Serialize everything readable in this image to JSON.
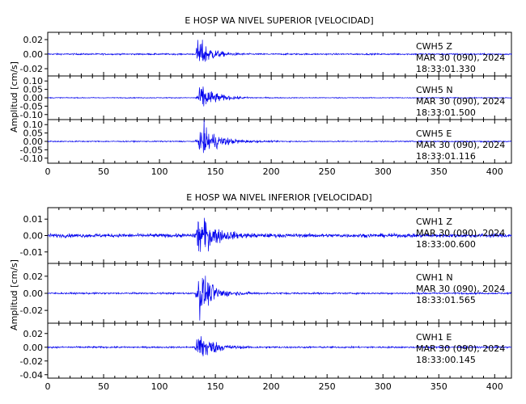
{
  "chart_data": [
    {
      "type": "line",
      "title": "E HOSP WA NIVEL SUPERIOR [VELOCIDAD]",
      "ylabel": "Amplitud [cm/s]",
      "xlabel": "",
      "xlim": [
        0,
        415
      ],
      "xticks": [
        "0",
        "50",
        "100",
        "150",
        "200",
        "250",
        "300",
        "350",
        "400"
      ],
      "line_color": "#0000ee",
      "panels": [
        {
          "station": "CWH5",
          "component": "Z",
          "date": "MAR 30 (090), 2024",
          "time": "18:33:01.330",
          "ylim": [
            -0.03,
            0.03
          ],
          "yticks": [
            "0.02",
            "0.00",
            "-0.02"
          ],
          "envelope": {
            "noise": 0.0012,
            "peak": 0.03,
            "onset": 132,
            "peak_at": 135,
            "decay": 10
          }
        },
        {
          "station": "CWH5",
          "component": "N",
          "date": "MAR 30 (090), 2024",
          "time": "18:33:01.500",
          "ylim": [
            -0.13,
            0.13
          ],
          "yticks": [
            "0.10",
            "0.05",
            "0.00",
            "-0.05",
            "-0.10"
          ],
          "envelope": {
            "noise": 0.003,
            "peak": 0.1,
            "onset": 132,
            "peak_at": 138,
            "decay": 12
          }
        },
        {
          "station": "CWH5",
          "component": "E",
          "date": "MAR 30 (090), 2024",
          "time": "18:33:01.116",
          "ylim": [
            -0.13,
            0.13
          ],
          "yticks": [
            "0.10",
            "0.05",
            "0.00",
            "-0.05",
            "-0.10"
          ],
          "envelope": {
            "noise": 0.004,
            "peak": 0.11,
            "onset": 132,
            "peak_at": 140,
            "decay": 14
          }
        }
      ]
    },
    {
      "type": "line",
      "title": "E HOSP WA NIVEL INFERIOR [VELOCIDAD]",
      "ylabel": "Amplitud [cm/s]",
      "xlabel": "",
      "xlim": [
        0,
        415
      ],
      "xticks": [
        "0",
        "50",
        "100",
        "150",
        "200",
        "250",
        "300",
        "350",
        "400"
      ],
      "line_color": "#0000ee",
      "panels": [
        {
          "station": "CWH1",
          "component": "Z",
          "date": "MAR 30 (090), 2024",
          "time": "18:33:00.600",
          "ylim": [
            -0.017,
            0.017
          ],
          "yticks": [
            "0.01",
            "0.00",
            "-0.01"
          ],
          "envelope": {
            "noise": 0.0014,
            "peak": 0.016,
            "onset": 131,
            "peak_at": 136,
            "decay": 13
          }
        },
        {
          "station": "CWH1",
          "component": "N",
          "date": "MAR 30 (090), 2024",
          "time": "18:33:01.565",
          "ylim": [
            -0.035,
            0.035
          ],
          "yticks": [
            "0.02",
            "0.00",
            "-0.02"
          ],
          "envelope": {
            "noise": 0.0012,
            "peak": 0.034,
            "onset": 132,
            "peak_at": 136,
            "decay": 11
          }
        },
        {
          "station": "CWH1",
          "component": "E",
          "date": "MAR 30 (090), 2024",
          "time": "18:33:00.145",
          "ylim": [
            -0.045,
            0.035
          ],
          "yticks": [
            "0.02",
            "0.00",
            "-0.02",
            "-0.04"
          ],
          "envelope": {
            "noise": 0.0015,
            "peak": 0.03,
            "onset": 131,
            "peak_at": 137,
            "decay": 11
          }
        }
      ]
    }
  ]
}
